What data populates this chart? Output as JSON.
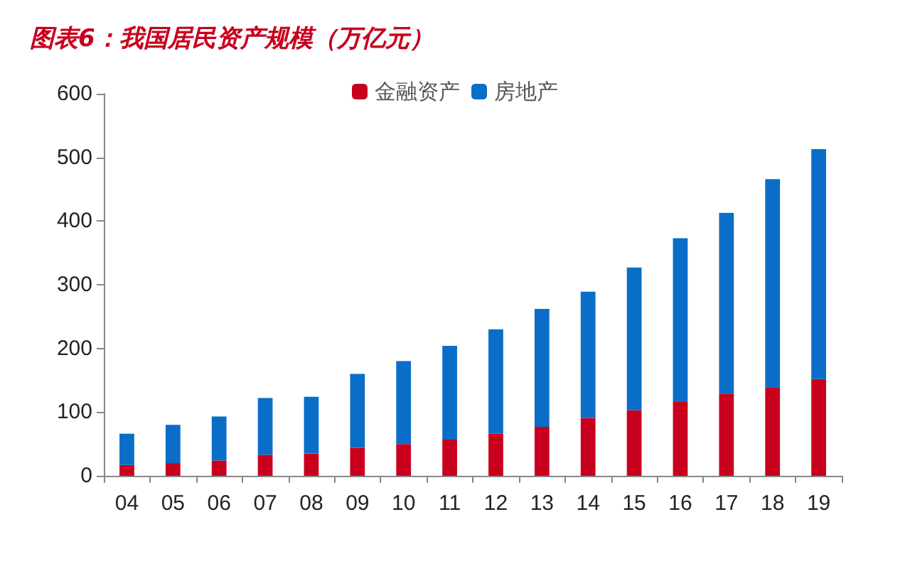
{
  "chart_data": {
    "type": "bar",
    "title": "图表6：我国居民资产规模（万亿元）",
    "stacked": true,
    "legend": "top",
    "grid": false,
    "categories": [
      "04",
      "05",
      "06",
      "07",
      "08",
      "09",
      "10",
      "11",
      "12",
      "13",
      "14",
      "15",
      "16",
      "17",
      "18",
      "19"
    ],
    "series": [
      {
        "name": "金融资产",
        "color": "#c8001e",
        "values": [
          17,
          20,
          24,
          33,
          35,
          44,
          50,
          57,
          66,
          77,
          91,
          103,
          116,
          129,
          139,
          152
        ]
      },
      {
        "name": "房地产",
        "color": "#0a6ec8",
        "values": [
          49,
          60,
          69,
          89,
          89,
          116,
          130,
          147,
          164,
          185,
          198,
          224,
          257,
          284,
          327,
          361
        ]
      }
    ],
    "ylim": [
      0,
      600
    ],
    "yticks": [
      0,
      100,
      200,
      300,
      400,
      500,
      600
    ]
  }
}
